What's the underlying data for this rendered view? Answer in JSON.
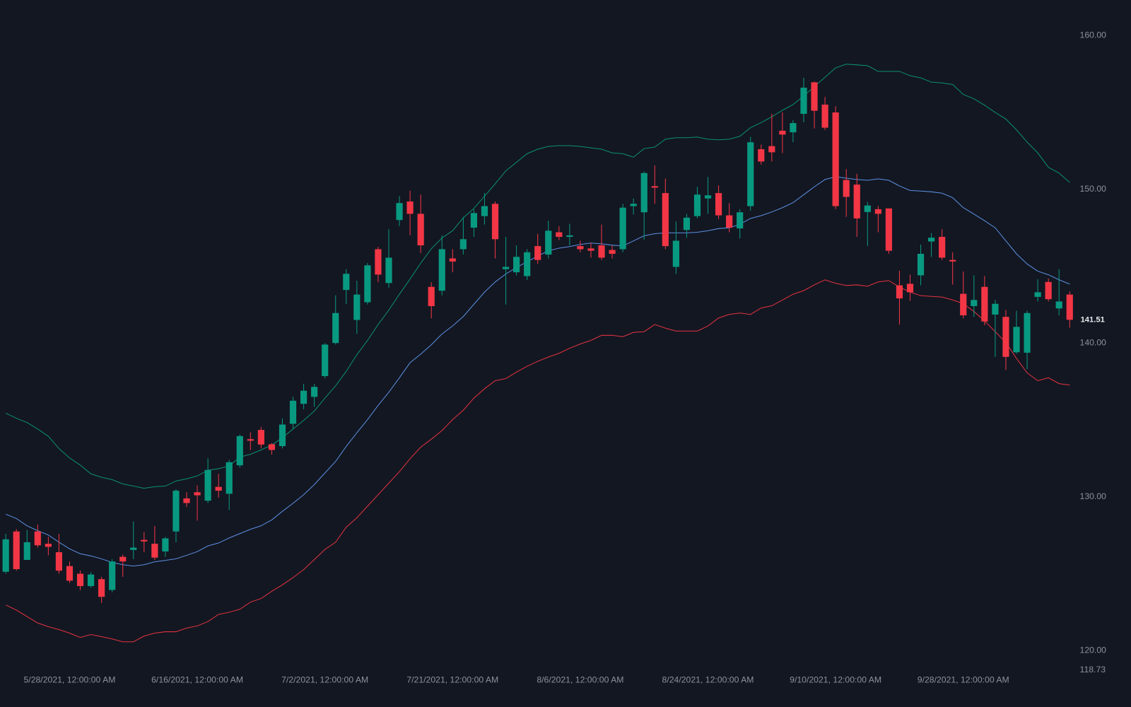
{
  "chart_data": {
    "type": "candlestick",
    "categories": [
      null,
      null,
      null,
      null,
      null,
      null,
      "5/28/2021, 12:00:00 AM",
      null,
      null,
      null,
      null,
      null,
      null,
      null,
      null,
      null,
      null,
      null,
      "6/16/2021, 12:00:00 AM",
      null,
      null,
      null,
      null,
      null,
      null,
      null,
      null,
      null,
      null,
      null,
      "7/2/2021, 12:00:00 AM",
      null,
      null,
      null,
      null,
      null,
      null,
      null,
      null,
      null,
      null,
      null,
      "7/21/2021, 12:00:00 AM",
      null,
      null,
      null,
      null,
      null,
      null,
      null,
      null,
      null,
      null,
      null,
      "8/6/2021, 12:00:00 AM",
      null,
      null,
      null,
      null,
      null,
      null,
      null,
      null,
      null,
      null,
      null,
      "8/24/2021, 12:00:00 AM",
      null,
      null,
      null,
      null,
      null,
      null,
      null,
      null,
      null,
      null,
      null,
      "9/10/2021, 12:00:00 AM",
      null,
      null,
      null,
      null,
      null,
      null,
      null,
      null,
      null,
      null,
      null,
      "9/28/2021, 12:00:00 AM",
      null,
      null,
      null,
      null,
      null,
      null,
      null,
      null,
      null,
      null
    ],
    "open": [
      125.13,
      127.75,
      125.9,
      127.75,
      126.95,
      126.4,
      125.5,
      125.0,
      124.2,
      124.65,
      123.95,
      126.1,
      126.55,
      127.2,
      126.95,
      126.45,
      127.75,
      129.9,
      130.3,
      129.75,
      130.65,
      130.2,
      132.05,
      133.75,
      134.35,
      133.42,
      133.3,
      134.75,
      136.05,
      136.5,
      137.85,
      140.0,
      143.45,
      141.5,
      142.65,
      146.1,
      143.9,
      148.0,
      149.2,
      148.4,
      143.65,
      143.4,
      145.5,
      146.1,
      147.5,
      148.25,
      149.05,
      144.8,
      144.6,
      144.35,
      146.3,
      145.75,
      147.2,
      146.9,
      146.3,
      146.15,
      146.35,
      146.05,
      146.1,
      148.9,
      148.5,
      150.2,
      149.75,
      144.95,
      147.35,
      148.25,
      149.4,
      149.75,
      148.3,
      147.45,
      148.9,
      152.6,
      152.8,
      153.8,
      153.7,
      154.9,
      156.95,
      155.5,
      154.99,
      150.6,
      150.3,
      148.52,
      148.7,
      148.75,
      143.75,
      143.85,
      144.4,
      146.6,
      146.9,
      145.4,
      143.2,
      142.4,
      143.65,
      141.85,
      141.7,
      139.4,
      139.37,
      143.0,
      143.97,
      142.25,
      143.15
    ],
    "high": [
      127.6,
      127.9,
      127.85,
      128.2,
      127.4,
      127.6,
      125.8,
      125.2,
      125.1,
      124.8,
      125.95,
      126.25,
      128.4,
      127.7,
      128.1,
      127.4,
      130.5,
      130.3,
      130.75,
      132.5,
      131.5,
      132.4,
      134.05,
      134.2,
      134.55,
      133.5,
      135.1,
      136.5,
      137.35,
      137.35,
      140.0,
      143.1,
      144.8,
      144.05,
      145.2,
      146.25,
      147.4,
      149.55,
      149.9,
      149.65,
      143.95,
      147.0,
      146.1,
      148.2,
      148.7,
      149.75,
      149.2,
      146.9,
      146.35,
      146.1,
      147.1,
      147.95,
      147.6,
      147.75,
      146.65,
      146.5,
      147.7,
      146.35,
      149.05,
      149.4,
      151.15,
      151.55,
      150.7,
      147.9,
      148.4,
      150.15,
      150.8,
      150.25,
      149.1,
      148.7,
      153.4,
      152.9,
      154.9,
      155.0,
      154.5,
      157.25,
      157.0,
      156.0,
      155.4,
      151.3,
      151.0,
      149.17,
      148.9,
      148.75,
      144.7,
      144.45,
      146.4,
      147.15,
      147.4,
      145.9,
      144.65,
      144.4,
      144.35,
      142.8,
      142.15,
      142.1,
      142.1,
      144.15,
      144.2,
      144.8,
      143.35
    ],
    "low": [
      125.0,
      125.2,
      125.9,
      126.7,
      126.2,
      125.0,
      124.4,
      123.95,
      124.1,
      123.1,
      123.8,
      124.8,
      125.95,
      126.4,
      125.9,
      126.1,
      127.05,
      129.35,
      128.45,
      129.6,
      129.95,
      129.15,
      131.9,
      133.05,
      133.15,
      132.75,
      133.15,
      134.45,
      135.7,
      135.85,
      137.7,
      139.9,
      142.55,
      140.6,
      142.5,
      143.95,
      143.6,
      147.6,
      147.0,
      145.85,
      141.6,
      143.1,
      144.6,
      145.75,
      146.9,
      147.7,
      145.5,
      142.5,
      144.4,
      144.1,
      145.15,
      145.5,
      146.7,
      146.35,
      145.9,
      145.55,
      145.4,
      145.5,
      145.9,
      148.35,
      146.7,
      149.05,
      146.1,
      144.5,
      146.85,
      148.1,
      148.4,
      148.05,
      147.2,
      146.8,
      148.6,
      151.6,
      151.8,
      152.35,
      153.05,
      154.35,
      153.95,
      153.85,
      148.7,
      148.2,
      146.9,
      146.3,
      147.2,
      145.8,
      141.2,
      142.75,
      143.75,
      145.6,
      145.4,
      143.8,
      141.6,
      141.7,
      141.15,
      139.1,
      138.25,
      139.3,
      138.3,
      142.7,
      142.7,
      141.8,
      141.0
    ],
    "close": [
      127.24,
      125.3,
      127.05,
      126.85,
      126.75,
      125.2,
      124.55,
      124.2,
      124.95,
      123.5,
      125.8,
      125.8,
      126.7,
      127.1,
      126.05,
      127.3,
      130.4,
      129.6,
      130.1,
      131.75,
      130.4,
      132.25,
      133.95,
      133.65,
      133.4,
      133.05,
      134.7,
      136.25,
      136.9,
      137.15,
      139.9,
      141.95,
      144.5,
      143.15,
      145.05,
      144.45,
      145.55,
      149.1,
      148.4,
      146.35,
      142.4,
      146.1,
      145.3,
      146.75,
      148.45,
      148.9,
      146.75,
      144.95,
      145.6,
      145.9,
      145.4,
      147.3,
      146.9,
      147.0,
      146.1,
      146.0,
      145.55,
      145.8,
      148.8,
      149.05,
      151.05,
      150.1,
      146.3,
      146.65,
      148.15,
      149.65,
      149.6,
      148.3,
      147.5,
      148.5,
      153.05,
      151.8,
      152.4,
      153.55,
      154.3,
      156.6,
      155.1,
      154.0,
      148.9,
      149.5,
      148.1,
      148.94,
      148.4,
      146.0,
      142.9,
      143.3,
      145.8,
      146.85,
      145.55,
      145.3,
      141.8,
      142.8,
      141.4,
      142.55,
      139.1,
      141.05,
      141.95,
      143.3,
      142.85,
      142.7,
      141.51
    ],
    "up_color": "#089981",
    "down_color": "#f23645",
    "bands": [
      {
        "color": "#0b8f70",
        "values": [
          135.44,
          135.11,
          134.83,
          134.41,
          133.94,
          133.14,
          132.53,
          132.06,
          131.5,
          131.27,
          131.12,
          130.84,
          130.7,
          130.56,
          130.66,
          130.7,
          131.03,
          131.17,
          131.36,
          131.73,
          131.83,
          132.02,
          132.58,
          132.77,
          133.05,
          133.37,
          133.84,
          134.41,
          134.97,
          135.58,
          136.42,
          137.22,
          138.16,
          139.24,
          140.17,
          141.2,
          142.14,
          143.17,
          144.16,
          145.19,
          146.13,
          146.83,
          147.3,
          148.14,
          148.75,
          149.55,
          150.35,
          151.19,
          151.75,
          152.31,
          152.6,
          152.78,
          152.83,
          152.83,
          152.78,
          152.69,
          152.6,
          152.36,
          152.31,
          152.08,
          152.64,
          152.74,
          153.25,
          153.35,
          153.35,
          153.39,
          153.25,
          153.21,
          153.25,
          153.44,
          154.0,
          154.33,
          154.71,
          155.13,
          155.5,
          156.06,
          156.67,
          157.28,
          157.89,
          158.13,
          158.08,
          158.03,
          157.66,
          157.66,
          157.66,
          157.38,
          157.24,
          156.96,
          156.91,
          156.81,
          156.16,
          155.88,
          155.46,
          154.99,
          154.56,
          153.86,
          153.06,
          152.36,
          151.42,
          151.05,
          150.44
        ]
      },
      {
        "color": "#5b8fe0",
        "values": [
          128.87,
          128.59,
          128.12,
          127.8,
          127.52,
          127.05,
          126.62,
          126.3,
          126.16,
          125.97,
          125.73,
          125.59,
          125.5,
          125.59,
          125.78,
          125.87,
          125.97,
          126.2,
          126.44,
          126.81,
          127.0,
          127.33,
          127.61,
          127.89,
          128.12,
          128.5,
          129.06,
          129.58,
          130.14,
          130.8,
          131.55,
          132.3,
          133.28,
          134.17,
          135.02,
          135.95,
          136.8,
          137.74,
          138.72,
          139.28,
          139.89,
          140.59,
          141.11,
          141.72,
          142.52,
          143.31,
          143.97,
          144.49,
          144.91,
          145.28,
          145.66,
          145.99,
          146.17,
          146.27,
          146.41,
          146.5,
          146.45,
          146.36,
          146.31,
          146.64,
          146.97,
          147.11,
          147.16,
          147.16,
          147.16,
          147.2,
          147.3,
          147.44,
          147.49,
          147.72,
          148.1,
          148.28,
          148.52,
          148.8,
          149.13,
          149.64,
          150.16,
          150.63,
          150.81,
          150.72,
          150.63,
          150.58,
          150.67,
          150.58,
          150.21,
          149.92,
          149.88,
          149.83,
          149.74,
          149.45,
          148.8,
          148.38,
          147.95,
          147.49,
          146.64,
          145.8,
          145.14,
          144.67,
          144.44,
          144.11,
          143.83
        ]
      },
      {
        "color": "#e2333f",
        "values": [
          122.97,
          122.64,
          122.22,
          121.8,
          121.56,
          121.37,
          121.14,
          120.86,
          121.05,
          120.91,
          120.76,
          120.58,
          120.58,
          120.95,
          121.14,
          121.23,
          121.23,
          121.47,
          121.61,
          121.89,
          122.36,
          122.5,
          122.69,
          123.16,
          123.39,
          123.86,
          124.28,
          124.75,
          125.27,
          125.92,
          126.58,
          127.05,
          128.03,
          128.64,
          129.39,
          130.14,
          130.89,
          131.64,
          132.48,
          133.23,
          133.75,
          134.31,
          135.02,
          135.63,
          136.42,
          137.03,
          137.55,
          137.69,
          138.11,
          138.49,
          138.81,
          139.09,
          139.33,
          139.66,
          139.94,
          140.17,
          140.5,
          140.5,
          140.41,
          140.69,
          140.74,
          141.2,
          140.97,
          140.78,
          140.78,
          140.78,
          141.11,
          141.63,
          141.86,
          141.95,
          141.86,
          142.28,
          142.42,
          142.8,
          143.17,
          143.41,
          143.78,
          144.11,
          143.88,
          143.74,
          143.78,
          143.69,
          143.97,
          144.06,
          143.64,
          143.31,
          143.08,
          143.03,
          142.99,
          142.8,
          142.56,
          142.05,
          141.44,
          140.74,
          140.03,
          139.0,
          138.06,
          137.55,
          137.74,
          137.36,
          137.27
        ]
      }
    ],
    "ylim": [
      118.73,
      162.3
    ],
    "yticks": [
      118.73,
      {
        "value": 120,
        "label": "120.00"
      },
      {
        "value": 130,
        "label": "130.00"
      },
      {
        "value": 140,
        "label": "140.00"
      },
      {
        "value": 150,
        "label": "150.00"
      },
      {
        "value": 160,
        "label": "160.00"
      }
    ],
    "last_price": 141.51,
    "grid": false
  }
}
